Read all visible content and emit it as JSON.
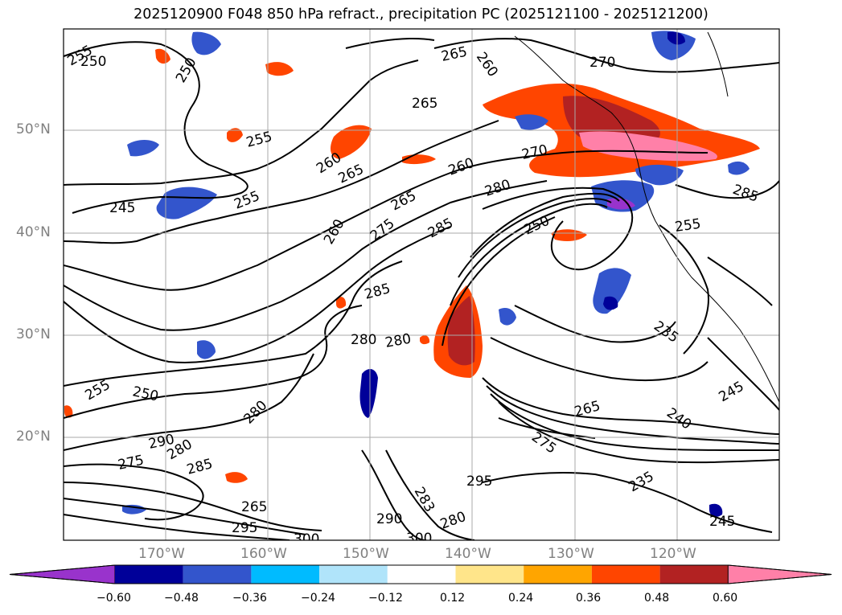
{
  "title": "2025120900 F048 850 hPa refract., precipitation PC (2025121100 - 2025121200)",
  "lat_labels": [
    "50°N",
    "40°N",
    "30°N",
    "20°N"
  ],
  "lon_labels": [
    "170°W",
    "160°W",
    "150°W",
    "140°W",
    "130°W",
    "120°W"
  ],
  "colorbar": {
    "tick_labels": [
      "−0.60",
      "−0.48",
      "−0.36",
      "−0.24",
      "−0.12",
      "0.12",
      "0.24",
      "0.36",
      "0.48",
      "0.60"
    ],
    "colors": [
      "#9933cc",
      "#000099",
      "#3355cc",
      "#00bbff",
      "#b0e4fa",
      "#ffffff",
      "#ffe58a",
      "#ffa500",
      "#ff4500",
      "#b22222",
      "#ff80a8"
    ]
  },
  "contour_labels": [
    "255",
    "250",
    "250",
    "265",
    "260",
    "270",
    "265",
    "255",
    "260",
    "265",
    "260",
    "270",
    "280",
    "245",
    "255",
    "265",
    "275",
    "285",
    "260",
    "285",
    "280",
    "280",
    "250",
    "265",
    "235",
    "255",
    "255",
    "250",
    "245",
    "280",
    "290",
    "280",
    "275",
    "285",
    "265",
    "275",
    "240",
    "295",
    "283",
    "290",
    "300",
    "295",
    "300",
    "280",
    "235",
    "245",
    "285"
  ]
}
